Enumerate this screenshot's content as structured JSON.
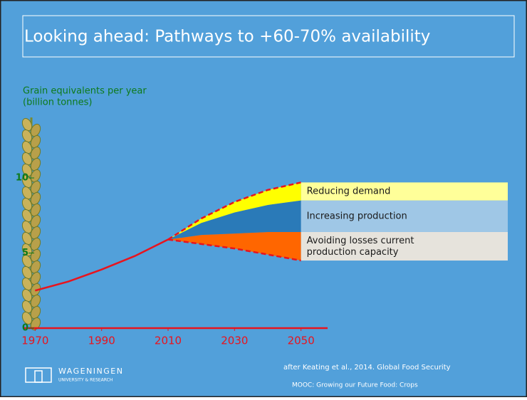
{
  "title": "Looking ahead: Pathways to +60-70% availability",
  "chart_data": {
    "type": "line",
    "y_label": [
      "Grain equivalents per year",
      "(billion tonnes)"
    ],
    "xlim": [
      1968,
      2058
    ],
    "ylim": [
      0,
      10
    ],
    "xticks": [
      1970,
      1990,
      2010,
      2030,
      2050
    ],
    "yticks": [
      0,
      5,
      10
    ],
    "history": {
      "color": "#e8141e",
      "x": [
        1970,
        1980,
        1990,
        2000,
        2010
      ],
      "values": [
        2.5,
        3.1,
        3.9,
        4.8,
        5.9
      ]
    },
    "bands_x": [
      2010,
      2020,
      2030,
      2040,
      2050
    ],
    "bands": [
      {
        "name": "Avoiding losses current production capacity",
        "color": "#ff6600",
        "legend_color": "#e6e3dc",
        "low": [
          5.9,
          5.6,
          5.3,
          4.9,
          4.5
        ],
        "high": [
          5.9,
          6.2,
          6.3,
          6.4,
          6.4
        ]
      },
      {
        "name": "Increasing production",
        "color": "#2a7ab8",
        "legend_color": "#9fc7e6",
        "low": [
          5.9,
          6.2,
          6.3,
          6.4,
          6.4
        ],
        "high": [
          5.9,
          7.0,
          7.7,
          8.2,
          8.5
        ]
      },
      {
        "name": "Reducing demand",
        "color": "#ffff00",
        "legend_color": "#ffff99",
        "low": [
          5.9,
          7.0,
          7.7,
          8.2,
          8.5
        ],
        "high": [
          5.9,
          7.3,
          8.4,
          9.2,
          9.7
        ]
      }
    ]
  },
  "footer": {
    "logo": "WAGENINGEN",
    "logo_sub": "UNIVERSITY & RESEARCH",
    "source": "after Keating et al., 2014. Global Food Security",
    "course": "MOOC: Growing our Future Food: Crops"
  }
}
